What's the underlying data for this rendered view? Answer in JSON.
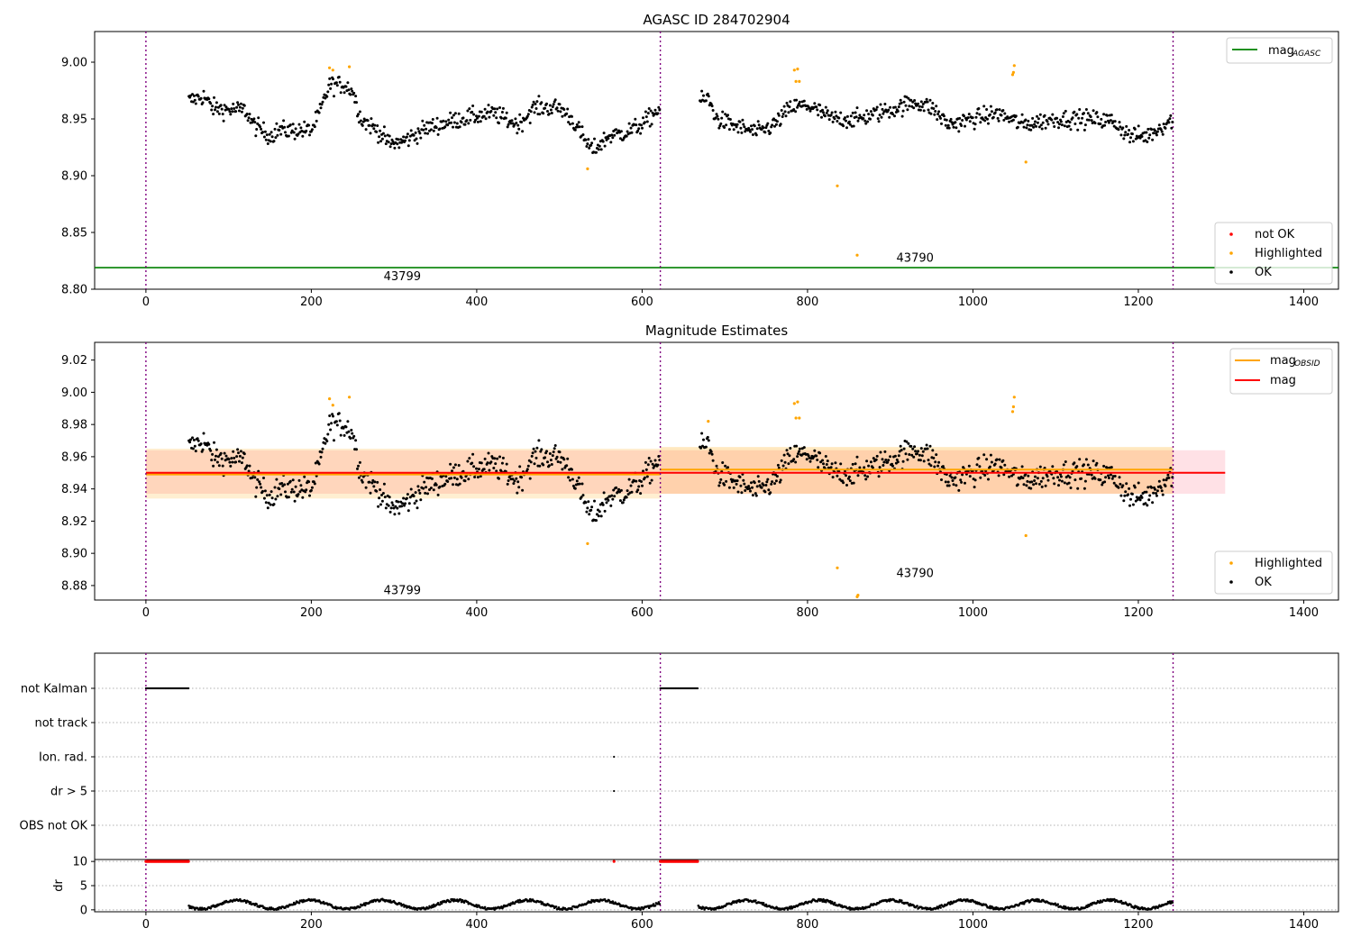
{
  "chart_data": [
    {
      "type": "scatter",
      "title": "AGASC ID 284702904",
      "xlim": [
        -62,
        1442
      ],
      "ylim": [
        8.8,
        9.027
      ],
      "xticks": [
        0,
        200,
        400,
        600,
        800,
        1000,
        1200,
        1400
      ],
      "yticks": [
        "8.80",
        "8.85",
        "8.90",
        "8.95",
        "9.00"
      ],
      "grid": false,
      "obs_boundaries": [
        0,
        622,
        1242
      ],
      "obs_labels": [
        {
          "text": "43799",
          "x": 310,
          "y": 8.812
        },
        {
          "text": "43790",
          "x": 930,
          "y": 8.828
        }
      ],
      "hlines": [
        {
          "name": "mag_AGASC",
          "y": 8.819,
          "color": "#008000",
          "xmin": -62,
          "xmax": 1442
        }
      ],
      "legend_lines": {
        "label_main": "mag",
        "label_sub": "AGASC",
        "position": "top-right"
      },
      "legend_points": {
        "position": "bottom-right",
        "entries": [
          {
            "label": "not OK",
            "color": "#ff0000"
          },
          {
            "label": "Highlighted",
            "color": "#ffa500"
          },
          {
            "label": "OK",
            "color": "#000000"
          }
        ]
      },
      "highlighted_points": [
        [
          222,
          8.995
        ],
        [
          226,
          8.993
        ],
        [
          246,
          8.996
        ],
        [
          534,
          8.906
        ],
        [
          784,
          8.993
        ],
        [
          788,
          8.994
        ],
        [
          786,
          8.983
        ],
        [
          790,
          8.983
        ],
        [
          836,
          8.891
        ],
        [
          860,
          8.83
        ],
        [
          1048,
          8.989
        ],
        [
          1049,
          8.991
        ],
        [
          1050,
          8.997
        ],
        [
          1064,
          8.912
        ]
      ]
    },
    {
      "type": "scatter",
      "title": "Magnitude Estimates",
      "xlim": [
        -62,
        1442
      ],
      "ylim": [
        8.871,
        9.031
      ],
      "xticks": [
        0,
        200,
        400,
        600,
        800,
        1000,
        1200,
        1400
      ],
      "yticks": [
        "8.88",
        "8.90",
        "8.92",
        "8.94",
        "8.96",
        "8.98",
        "9.00",
        "9.02"
      ],
      "grid": false,
      "obs_boundaries": [
        0,
        622,
        1242
      ],
      "obs_labels": [
        {
          "text": "43799",
          "x": 310,
          "y": 8.8775
        },
        {
          "text": "43790",
          "x": 930,
          "y": 8.888
        }
      ],
      "bands": [
        {
          "name": "mag",
          "xmin": 0,
          "xmax": 1305,
          "y0": 8.937,
          "y1": 8.964,
          "color": "rgba(255,120,140,0.22)"
        },
        {
          "name": "mag_OBSID 43799",
          "xmin": 0,
          "xmax": 622,
          "y0": 8.934,
          "y1": 8.965,
          "color": "rgba(255,165,0,0.18)"
        },
        {
          "name": "mag_OBSID 43790",
          "xmin": 622,
          "xmax": 1242,
          "y0": 8.937,
          "y1": 8.966,
          "color": "rgba(255,165,0,0.25)"
        }
      ],
      "lines": [
        {
          "name": "mag_OBSID",
          "color": "#ffa500",
          "segments": [
            [
              0,
              622,
              8.949
            ],
            [
              622,
              1242,
              8.952
            ]
          ]
        },
        {
          "name": "mag",
          "color": "#ff0000",
          "segments": [
            [
              0,
              1305,
              8.95
            ]
          ]
        }
      ],
      "legend_lines": {
        "position": "top-right",
        "entries": [
          {
            "label_main": "mag",
            "label_sub": "OBSID",
            "color": "#ffa500"
          },
          {
            "label_main": "mag",
            "label_sub": "",
            "color": "#ff0000"
          }
        ]
      },
      "legend_points": {
        "position": "bottom-right",
        "entries": [
          {
            "label": "Highlighted",
            "color": "#ffa500"
          },
          {
            "label": "OK",
            "color": "#000000"
          }
        ]
      },
      "highlighted_points": [
        [
          222,
          8.996
        ],
        [
          226,
          8.992
        ],
        [
          246,
          8.997
        ],
        [
          534,
          8.906
        ],
        [
          680,
          8.982
        ],
        [
          784,
          8.993
        ],
        [
          788,
          8.994
        ],
        [
          786,
          8.984
        ],
        [
          790,
          8.984
        ],
        [
          836,
          8.891
        ],
        [
          860,
          8.873
        ],
        [
          861,
          8.874
        ],
        [
          1048,
          8.988
        ],
        [
          1049,
          8.991
        ],
        [
          1050,
          8.997
        ],
        [
          1064,
          8.911
        ]
      ]
    },
    {
      "type": "scatter",
      "title": "",
      "xlim": [
        -62,
        1442
      ],
      "categories": [
        "not Kalman",
        "not track",
        "Ion. rad.",
        "dr > 5",
        "OBS not OK"
      ],
      "grid": true,
      "obs_boundaries": [
        0,
        622,
        1242
      ],
      "flags": [
        {
          "category": "not Kalman",
          "ranges": [
            [
              0,
              52
            ],
            [
              622,
              668
            ]
          ]
        },
        {
          "category": "Ion. rad.",
          "points": [
            566
          ]
        },
        {
          "category": "dr > 5",
          "points": [
            566
          ]
        }
      ]
    },
    {
      "type": "scatter",
      "title": "",
      "ylabel": "dr",
      "xlim": [
        -62,
        1442
      ],
      "ylim": [
        -0.4,
        10.4
      ],
      "xticks": [
        0,
        200,
        400,
        600,
        800,
        1000,
        1200,
        1400
      ],
      "yticks": [
        "0",
        "5",
        "10"
      ],
      "grid": true,
      "obs_boundaries": [
        0,
        622,
        1242
      ],
      "clipped_markers": {
        "value": 10,
        "color": "#ff0000",
        "ranges": [
          [
            0,
            52
          ],
          [
            622,
            668
          ]
        ],
        "points": [
          566
        ]
      },
      "segments": [
        [
          52,
          622
        ],
        [
          668,
          1242
        ]
      ]
    }
  ]
}
